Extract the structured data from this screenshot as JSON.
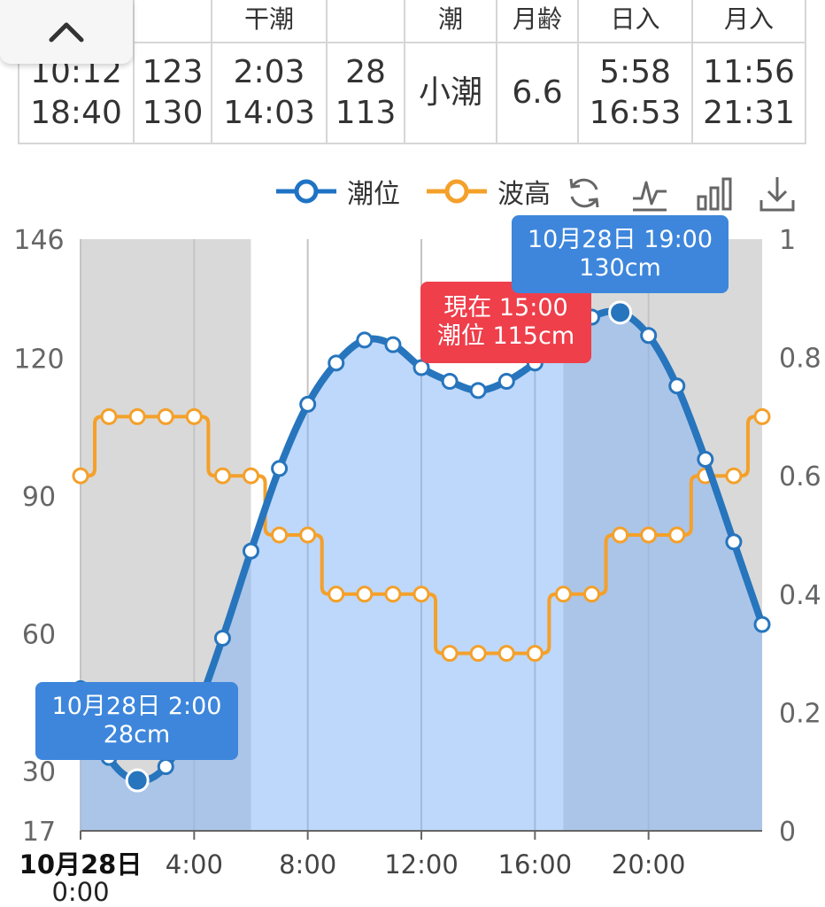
{
  "table": {
    "headers": [
      "",
      "",
      "干潮",
      "",
      "潮",
      "月齢",
      "日入",
      "月入"
    ],
    "cells": [
      [
        "10:12",
        "18:40"
      ],
      [
        "123",
        "130"
      ],
      [
        "2:03",
        "14:03"
      ],
      [
        "28",
        "113"
      ],
      [
        "小潮"
      ],
      [
        "6.6"
      ],
      [
        "5:58",
        "16:53"
      ],
      [
        "11:56",
        "21:31"
      ]
    ]
  },
  "collapse_icon": "chevron-up-icon",
  "legend": {
    "tide": {
      "label": "潮位",
      "color": "#1f73c4"
    },
    "wave": {
      "label": "波高",
      "color": "#f4a02a"
    }
  },
  "toolbar": [
    "refresh-icon",
    "line-chart-icon",
    "bar-chart-icon",
    "download-icon"
  ],
  "tooltips": {
    "low": {
      "line1": "10月28日 2:00",
      "line2": "28cm"
    },
    "high": {
      "line1": "10月28日 19:00",
      "line2": "130cm"
    },
    "now": {
      "line1": "現在 15:00",
      "line2": "潮位 115cm"
    }
  },
  "chart_data": {
    "type": "line",
    "x_hours": [
      0,
      1,
      2,
      3,
      4,
      5,
      6,
      7,
      8,
      9,
      10,
      11,
      12,
      13,
      14,
      15,
      16,
      17,
      18,
      19,
      20,
      21,
      22,
      23,
      24
    ],
    "x_tick_hours": [
      0,
      4,
      8,
      12,
      16,
      20
    ],
    "x_tick_labels": [
      "10月28日",
      "4:00",
      "8:00",
      "12:00",
      "16:00",
      "20:00"
    ],
    "x_first_sublabel": "0:00",
    "series": [
      {
        "name": "潮位",
        "axis": "left",
        "values": [
          48,
          33,
          28,
          31,
          42,
          59,
          78,
          96,
          110,
          119,
          124,
          123,
          118,
          115,
          113,
          115,
          119,
          124,
          129,
          130,
          125,
          114,
          98,
          80,
          62
        ]
      },
      {
        "name": "波高",
        "axis": "right",
        "values": [
          0.6,
          0.7,
          0.7,
          0.7,
          0.7,
          0.6,
          0.6,
          0.5,
          0.5,
          0.4,
          0.4,
          0.4,
          0.4,
          0.3,
          0.3,
          0.3,
          0.3,
          0.4,
          0.4,
          0.5,
          0.5,
          0.5,
          0.6,
          0.6,
          0.7
        ]
      }
    ],
    "y_left": {
      "min": 17,
      "max": 146,
      "ticks": [
        17,
        30,
        60,
        90,
        120,
        146
      ]
    },
    "y_right": {
      "min": 0,
      "max": 1,
      "ticks": [
        "0",
        "0.2",
        "0.4",
        "0.6",
        "0.8",
        "1"
      ]
    },
    "night_shading": [
      [
        0,
        6
      ],
      [
        17,
        24
      ]
    ],
    "current_hour": 15,
    "highlight_hours": [
      2,
      19
    ],
    "grid": true
  }
}
